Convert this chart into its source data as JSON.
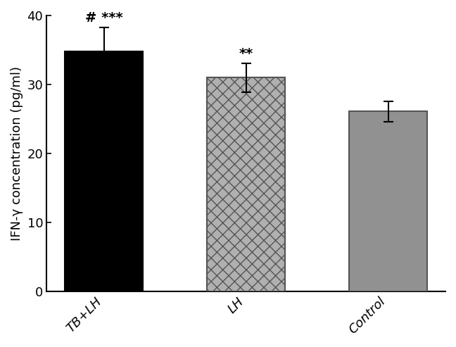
{
  "categories": [
    "TB+LH",
    "LH",
    "Control"
  ],
  "values": [
    34.8,
    31.0,
    26.1
  ],
  "errors": [
    3.5,
    2.1,
    1.5
  ],
  "bar_colors": [
    "#000000",
    "#ffffff",
    "#919191"
  ],
  "bar_edgecolors": [
    "#000000",
    "#555555",
    "#555555"
  ],
  "annotations": [
    "# ***",
    "**",
    ""
  ],
  "ylabel": "IFN-γ concentration (pg/ml)",
  "ylim": [
    0,
    40
  ],
  "yticks": [
    0,
    10,
    20,
    30,
    40
  ],
  "bar_width": 0.55,
  "annotation_fontsize": 14,
  "tick_fontsize": 13,
  "ylabel_fontsize": 13,
  "checker_light": "#c8c8c8",
  "checker_dark": "#888888"
}
